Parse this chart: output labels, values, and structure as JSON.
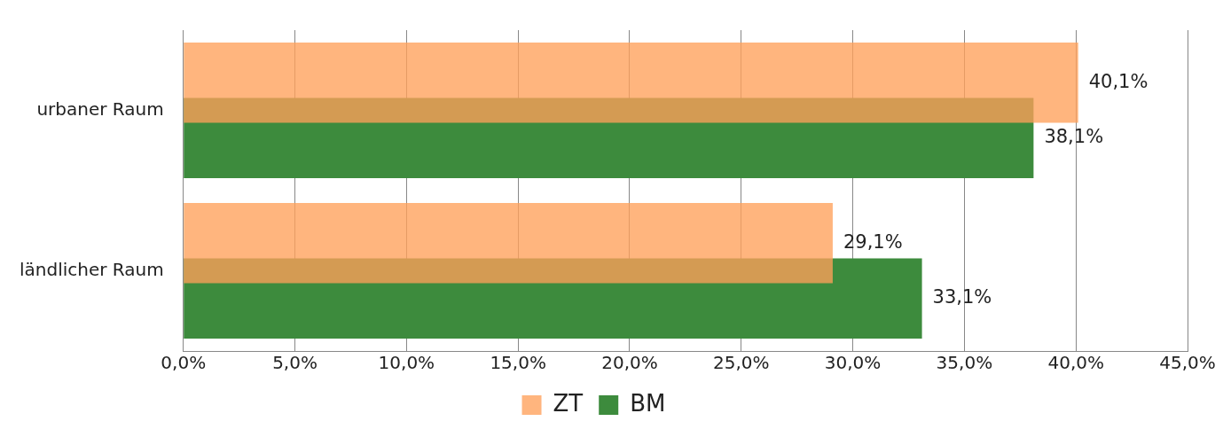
{
  "chart_data": {
    "type": "bar",
    "orientation": "horizontal",
    "categories": [
      "urbaner Raum",
      "ländlicher Raum"
    ],
    "series": [
      {
        "name": "ZT",
        "color": "#ffa05a",
        "values": [
          40.1,
          29.1
        ],
        "value_labels": [
          "40,1%",
          "29,1%"
        ]
      },
      {
        "name": "BM",
        "color": "#3d8b3d",
        "values": [
          38.1,
          33.1
        ],
        "value_labels": [
          "38,1%",
          "33,1%"
        ]
      }
    ],
    "xlim": [
      0,
      45
    ],
    "xticks": [
      {
        "value": 0,
        "label": "0,0%"
      },
      {
        "value": 5,
        "label": "5,0%"
      },
      {
        "value": 10,
        "label": "10,0%"
      },
      {
        "value": 15,
        "label": "15,0%"
      },
      {
        "value": 20,
        "label": "20,0%"
      },
      {
        "value": 25,
        "label": "25,0%"
      },
      {
        "value": 30,
        "label": "30,0%"
      },
      {
        "value": 35,
        "label": "35,0%"
      },
      {
        "value": 40,
        "label": "40,0%"
      },
      {
        "value": 45,
        "label": "45,0%"
      }
    ],
    "grid": "x",
    "legend": "bottom"
  }
}
